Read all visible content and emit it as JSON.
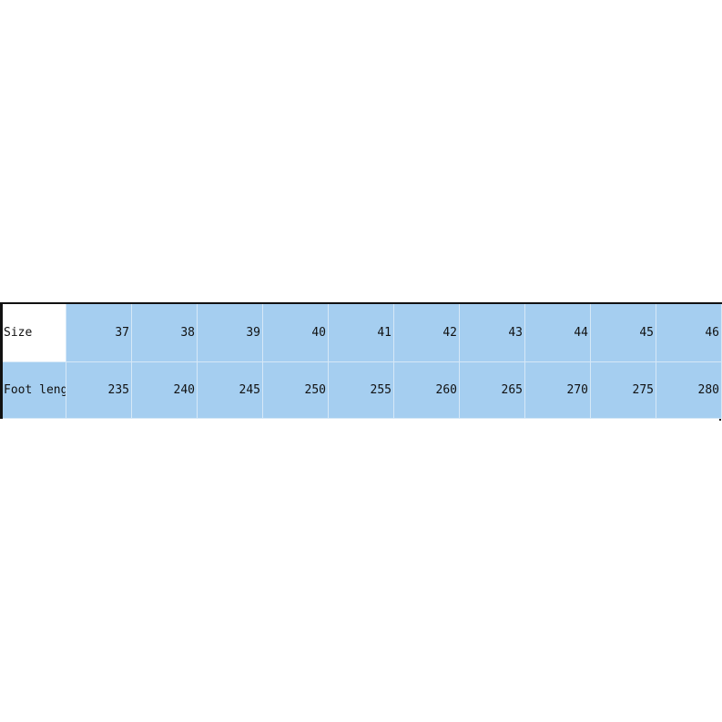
{
  "table": {
    "rows": [
      {
        "label": "Size",
        "values": [
          "37",
          "38",
          "39",
          "40",
          "41",
          "42",
          "43",
          "44",
          "45",
          "46"
        ]
      },
      {
        "label": "Foot length",
        "values": [
          "235",
          "240",
          "245",
          "250",
          "255",
          "260",
          "265",
          "270",
          "275",
          "280"
        ]
      }
    ]
  },
  "colors": {
    "cell_fill": "#a5cef0",
    "header_cell_fill": "#ffffff",
    "border": "#111111"
  }
}
